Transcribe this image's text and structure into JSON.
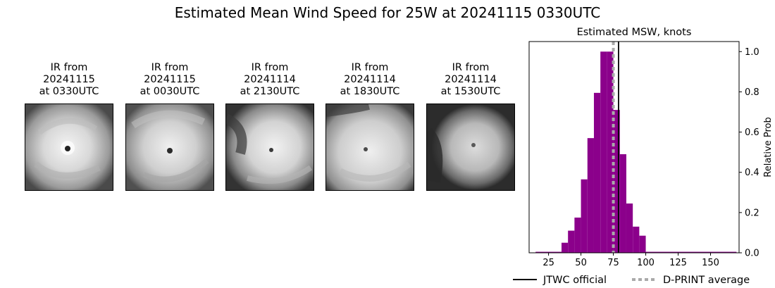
{
  "title": "Estimated Mean Wind Speed for 25W at 20241115 0330UTC",
  "panels": [
    {
      "line1": "IR from",
      "line2": "20241115",
      "line3": "at 0330UTC"
    },
    {
      "line1": "IR from",
      "line2": "20241115",
      "line3": "at 0030UTC"
    },
    {
      "line1": "IR from",
      "line2": "20241114",
      "line3": "at 2130UTC"
    },
    {
      "line1": "IR from",
      "line2": "20241114",
      "line3": "at 1830UTC"
    },
    {
      "line1": "IR from",
      "line2": "20241114",
      "line3": "at 1530UTC"
    }
  ],
  "chart_data": {
    "type": "bar",
    "title": "Estimated MSW, knots",
    "xlabel": "",
    "ylabel": "Relative Prob",
    "xlim": [
      10,
      172
    ],
    "ylim": [
      0,
      1.05
    ],
    "xticks": [
      25,
      50,
      75,
      100,
      125,
      150
    ],
    "yticks": [
      0.0,
      0.2,
      0.4,
      0.6,
      0.8,
      1.0
    ],
    "ytick_labels": [
      "0.0",
      "0.2",
      "0.4",
      "0.6",
      "0.8",
      "1.0"
    ],
    "y_axis_side": "right",
    "bin_width": 5,
    "bars": [
      {
        "x0": 15,
        "x1": 35,
        "value": 0.005
      },
      {
        "x0": 35,
        "x1": 40,
        "value": 0.05
      },
      {
        "x0": 40,
        "x1": 45,
        "value": 0.11
      },
      {
        "x0": 45,
        "x1": 50,
        "value": 0.175
      },
      {
        "x0": 50,
        "x1": 55,
        "value": 0.365
      },
      {
        "x0": 55,
        "x1": 60,
        "value": 0.57
      },
      {
        "x0": 60,
        "x1": 65,
        "value": 0.795
      },
      {
        "x0": 65,
        "x1": 70,
        "value": 1.0
      },
      {
        "x0": 70,
        "x1": 75,
        "value": 1.0
      },
      {
        "x0": 75,
        "x1": 80,
        "value": 0.71
      },
      {
        "x0": 80,
        "x1": 85,
        "value": 0.49
      },
      {
        "x0": 85,
        "x1": 90,
        "value": 0.245
      },
      {
        "x0": 90,
        "x1": 95,
        "value": 0.13
      },
      {
        "x0": 95,
        "x1": 100,
        "value": 0.085
      },
      {
        "x0": 100,
        "x1": 170,
        "value": 0.005
      }
    ],
    "bar_color": "#8b008b",
    "jtwc_official": 79,
    "dprint_average": 75,
    "legend": [
      {
        "label": "JTWC official",
        "color": "#000000",
        "style": "solid"
      },
      {
        "label": "D-PRINT average",
        "color": "#aaaaaa",
        "style": "dotted"
      }
    ],
    "legend_placement": "bottom"
  }
}
